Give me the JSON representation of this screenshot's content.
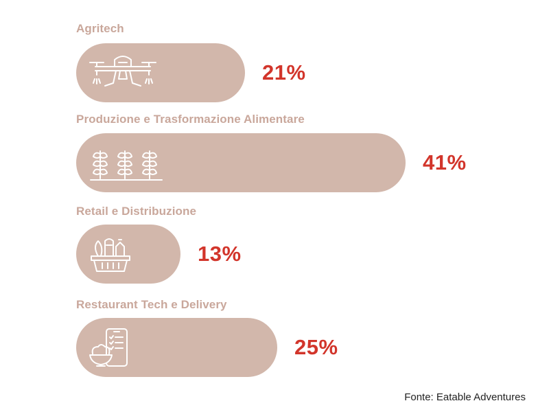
{
  "chart_data": {
    "type": "bar",
    "orientation": "horizontal",
    "categories": [
      "Agritech",
      "Produzione e Trasformazione Alimentare",
      "Retail e Distribuzione",
      "Restaurant Tech e Delivery"
    ],
    "values": [
      21,
      41,
      13,
      25
    ],
    "value_labels": [
      "21%",
      "41%",
      "13%",
      "25%"
    ],
    "icons": [
      "drone-icon",
      "crops-icon",
      "grocery-basket-icon",
      "phone-food-delivery-icon"
    ],
    "unit": "%",
    "xlim": [
      0,
      41
    ]
  },
  "source": "Fonte: Eatable Adventures",
  "colors": {
    "bar": "#d2b7ab",
    "label": "#c9a79b",
    "value": "#d2352b",
    "icon": "#ffffff"
  }
}
